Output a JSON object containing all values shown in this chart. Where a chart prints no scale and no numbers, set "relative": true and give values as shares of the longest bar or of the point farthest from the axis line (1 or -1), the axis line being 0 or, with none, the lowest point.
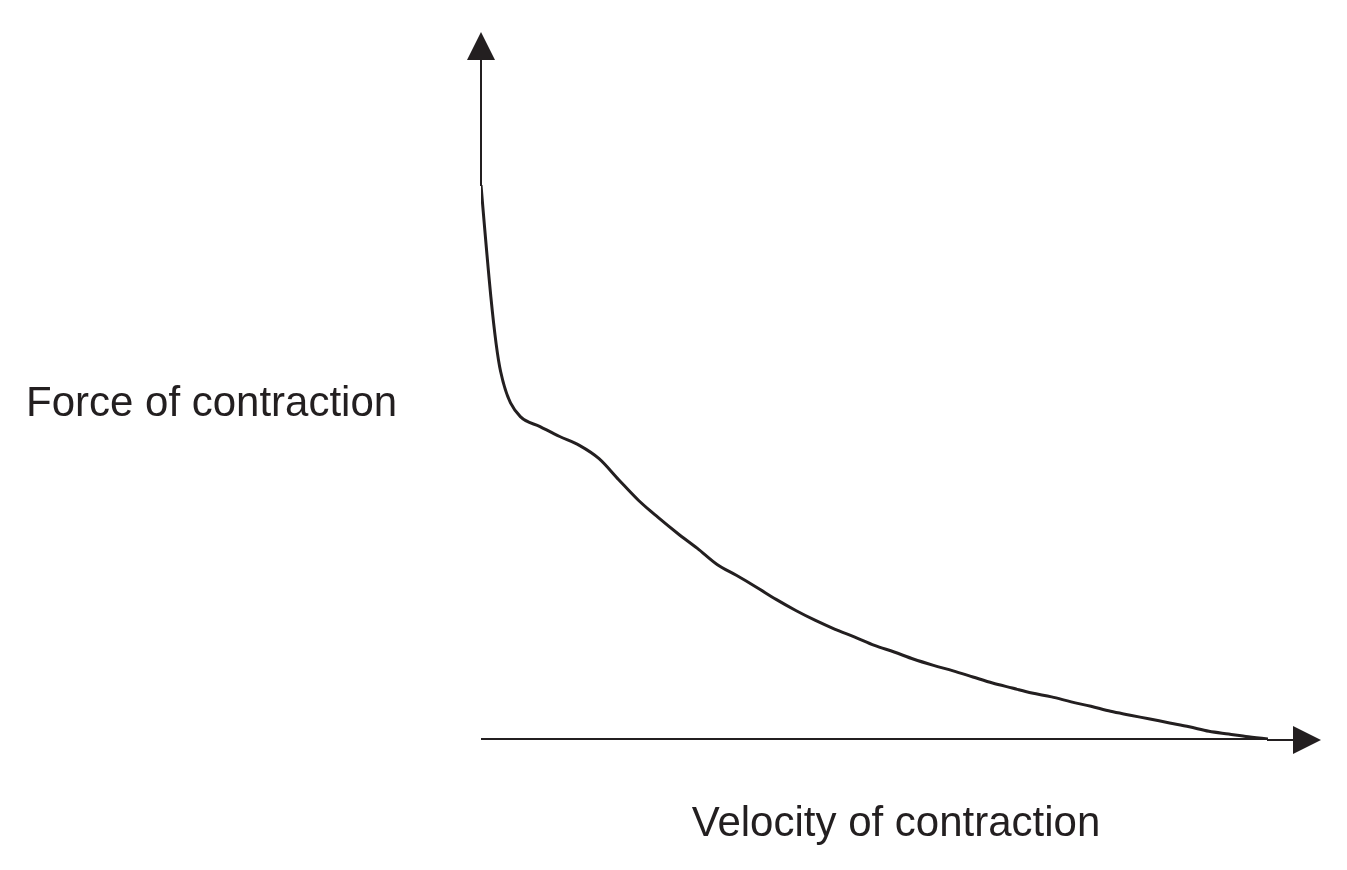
{
  "chart_data": {
    "type": "line",
    "relative": true,
    "xlabel": "Velocity of contraction",
    "ylabel": "Force of contraction",
    "categories": [
      null,
      null,
      null,
      null,
      null,
      null,
      null,
      null,
      null,
      null,
      null,
      null,
      null,
      null,
      null,
      null,
      null,
      null,
      null,
      null,
      null,
      null,
      null,
      null,
      null,
      null,
      null,
      null,
      null,
      null,
      null,
      null,
      null,
      null,
      null,
      null,
      null,
      null,
      null,
      null,
      null
    ],
    "series": [
      {
        "color": "#231f20",
        "values": [
          1,
          0.663,
          0.582,
          0.564,
          0.546,
          0.53,
          0.506,
          0.468,
          0.431,
          0.4,
          0.371,
          0.344,
          0.315,
          0.295,
          0.274,
          0.252,
          0.232,
          0.214,
          0.198,
          0.184,
          0.169,
          0.157,
          0.144,
          0.133,
          0.123,
          0.112,
          0.101,
          0.092,
          0.083,
          0.076,
          0.067,
          0.059,
          0.05,
          0.043,
          0.036,
          0.029,
          0.022,
          0.014,
          0.009,
          0.004,
          0
        ]
      }
    ],
    "grid": false,
    "legend": false,
    "marker": "none",
    "line_style": "solid"
  }
}
